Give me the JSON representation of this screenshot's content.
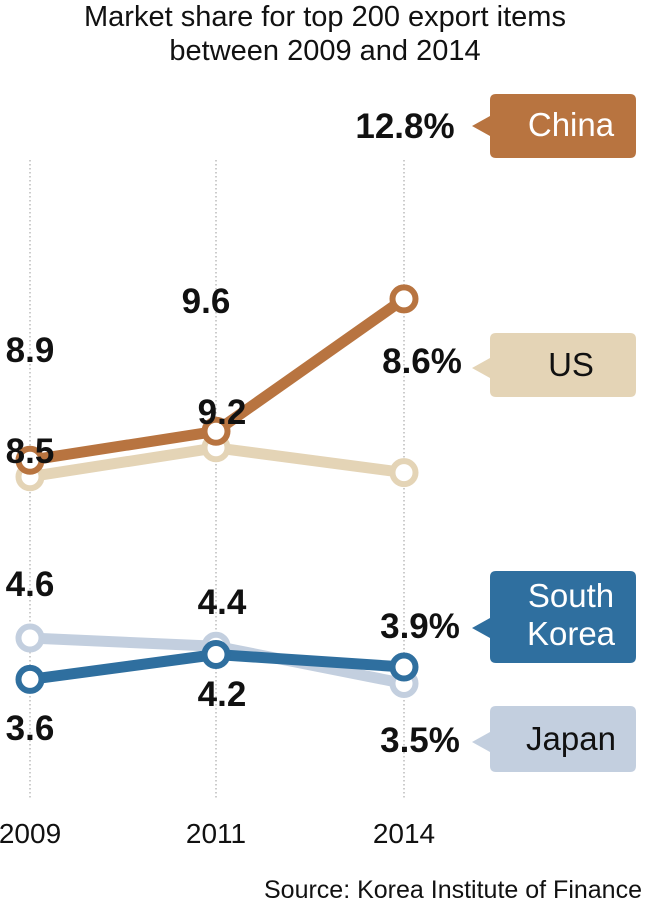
{
  "title_line1": "Market share for top 200 export items",
  "title_line2": "between 2009 and 2014",
  "source": "Source: Korea Institute of Finance",
  "chart_data": {
    "type": "line",
    "title": "Market share for top 200 export items between 2009 and 2014",
    "x": [
      "2009",
      "2011",
      "2014"
    ],
    "ylim": [
      0,
      14
    ],
    "grid": false,
    "series": [
      {
        "name": "China",
        "values": [
          8.9,
          9.6,
          12.8
        ],
        "labels": [
          "8.9",
          "9.6",
          "12.8%"
        ],
        "color": "#b87440",
        "text_color": "#ffffff"
      },
      {
        "name": "US",
        "values": [
          8.5,
          9.2,
          8.6
        ],
        "labels": [
          "8.5",
          "9.2",
          "8.6%"
        ],
        "color": "#e4d4b6",
        "text_color": "#111111"
      },
      {
        "name": "South Korea",
        "values": [
          3.6,
          4.2,
          3.9
        ],
        "labels": [
          "3.6",
          "4.2",
          "3.9%"
        ],
        "color": "#2f6f9f",
        "text_color": "#ffffff"
      },
      {
        "name": "Japan",
        "values": [
          4.6,
          4.4,
          3.5
        ],
        "labels": [
          "4.6",
          "4.4",
          "3.5%"
        ],
        "color": "#c3cfdf",
        "text_color": "#111111"
      }
    ]
  }
}
